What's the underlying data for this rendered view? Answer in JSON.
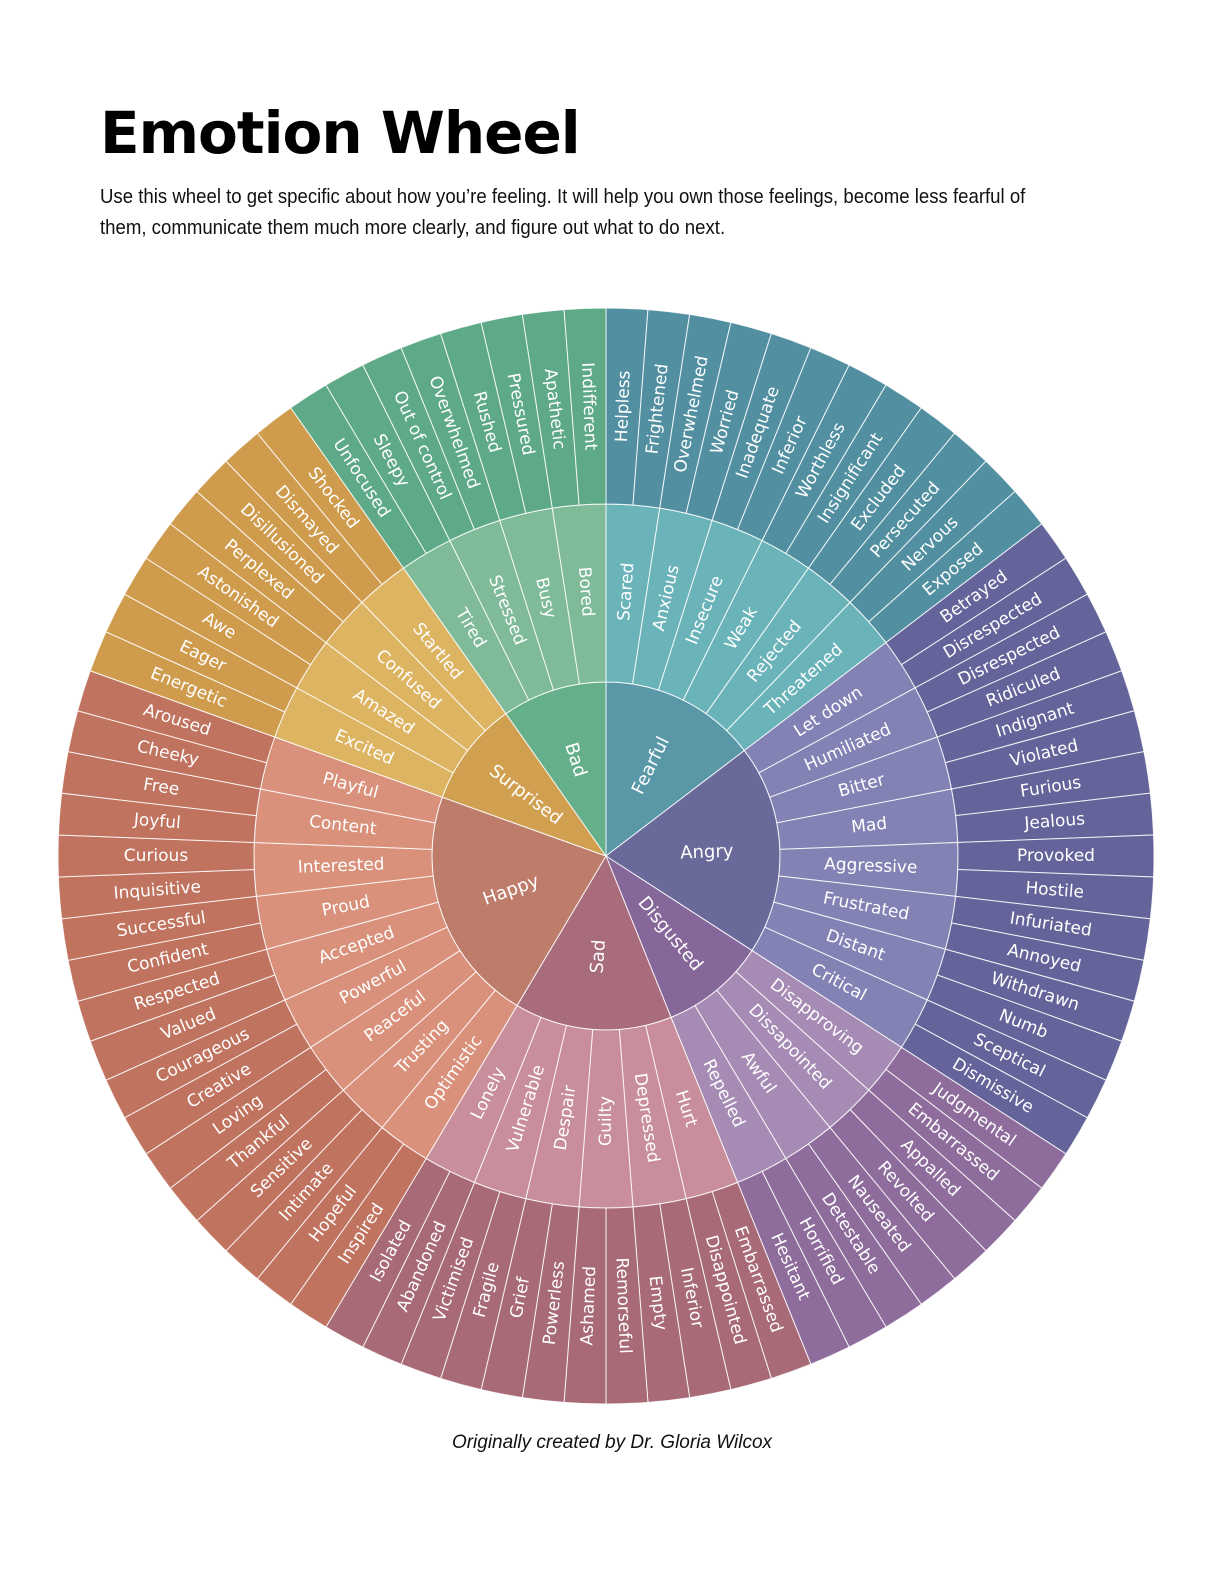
{
  "header": {
    "title": "Emotion Wheel",
    "subtitle": "Use this wheel to get specific about how you’re feeling. It will help you own those feelings, become less fearful of them, communicate them much more clearly, and figure out what to do next."
  },
  "footer": {
    "credit": "Originally created by Dr. Gloria Wilcox"
  },
  "wheel": {
    "emotions": [
      {
        "name": "Fearful",
        "color": "#5a98a8",
        "middle_color": "#6ab3b9",
        "outer_color": "#5290a1",
        "children": [
          {
            "name": "Scared",
            "children": [
              "Helpless",
              "Frightened"
            ]
          },
          {
            "name": "Anxious",
            "children": [
              "Overwhelmed",
              "Worried"
            ]
          },
          {
            "name": "Insecure",
            "children": [
              "Inadequate",
              "Inferior"
            ]
          },
          {
            "name": "Weak",
            "children": [
              "Worthless",
              "Insignificant"
            ]
          },
          {
            "name": "Rejected",
            "children": [
              "Excluded",
              "Persecuted"
            ]
          },
          {
            "name": "Threatened",
            "children": [
              "Nervous",
              "Exposed"
            ]
          }
        ]
      },
      {
        "name": "Angry",
        "color": "#6a6a9a",
        "middle_color": "#8382b4",
        "outer_color": "#64649a",
        "children": [
          {
            "name": "Let down",
            "children": [
              "Betrayed",
              "Disrespected"
            ]
          },
          {
            "name": "Humiliated",
            "children": [
              "Disrespected",
              "Ridiculed"
            ]
          },
          {
            "name": "Bitter",
            "children": [
              "Indignant",
              "Violated"
            ]
          },
          {
            "name": "Mad",
            "children": [
              "Furious",
              "Jealous"
            ]
          },
          {
            "name": "Aggressive",
            "children": [
              "Provoked",
              "Hostile"
            ]
          },
          {
            "name": "Frustrated",
            "children": [
              "Infuriated",
              "Annoyed"
            ]
          },
          {
            "name": "Distant",
            "children": [
              "Withdrawn",
              "Numb"
            ]
          },
          {
            "name": "Critical",
            "children": [
              "Sceptical",
              "Dismissive"
            ]
          }
        ]
      },
      {
        "name": "Disgusted",
        "color": "#85679a",
        "middle_color": "#a68bb4",
        "outer_color": "#8e6d9c",
        "children": [
          {
            "name": "Disapproving",
            "children": [
              "Judgmental",
              "Embarrassed"
            ]
          },
          {
            "name": "Dissapointed",
            "children": [
              "Appalled",
              "Revolted"
            ]
          },
          {
            "name": "Awful",
            "children": [
              "Nauseated",
              "Detestable"
            ]
          },
          {
            "name": "Repelled",
            "children": [
              "Horrified",
              "Hesitant"
            ]
          }
        ]
      },
      {
        "name": "Sad",
        "color": "#a86c7d",
        "middle_color": "#c98e9c",
        "outer_color": "#a76a76",
        "children": [
          {
            "name": "Hurt",
            "children": [
              "Embarrassed",
              "Disappointed"
            ]
          },
          {
            "name": "Depressed",
            "children": [
              "Inferior",
              "Empty"
            ]
          },
          {
            "name": "Guilty",
            "children": [
              "Remorseful",
              "Ashamed"
            ]
          },
          {
            "name": "Despair",
            "children": [
              "Powerless",
              "Grief"
            ]
          },
          {
            "name": "Vulnerable",
            "children": [
              "Fragile",
              "Victimised"
            ]
          },
          {
            "name": "Lonely",
            "children": [
              "Abandoned",
              "Isolated"
            ]
          }
        ]
      },
      {
        "name": "Happy",
        "color": "#be7d6b",
        "middle_color": "#d9917b",
        "outer_color": "#c0735f",
        "children": [
          {
            "name": "Optimistic",
            "children": [
              "Inspired",
              "Hopeful"
            ]
          },
          {
            "name": "Trusting",
            "children": [
              "Intimate",
              "Sensitive"
            ]
          },
          {
            "name": "Peaceful",
            "children": [
              "Thankful",
              "Loving"
            ]
          },
          {
            "name": "Powerful",
            "children": [
              "Creative",
              "Courageous"
            ]
          },
          {
            "name": "Accepted",
            "children": [
              "Valued",
              "Respected"
            ]
          },
          {
            "name": "Proud",
            "children": [
              "Confident",
              "Successful"
            ]
          },
          {
            "name": "Interested",
            "children": [
              "Inquisitive",
              "Curious"
            ]
          },
          {
            "name": "Content",
            "children": [
              "Joyful",
              "Free"
            ]
          },
          {
            "name": "Playful",
            "children": [
              "Cheeky",
              "Aroused"
            ]
          }
        ]
      },
      {
        "name": "Surprised",
        "color": "#d0a050",
        "middle_color": "#dcb462",
        "outer_color": "#cf9c4e",
        "children": [
          {
            "name": "Excited",
            "children": [
              "Energetic",
              "Eager"
            ]
          },
          {
            "name": "Amazed",
            "children": [
              "Awe",
              "Astonished"
            ]
          },
          {
            "name": "Confused",
            "children": [
              "Perplexed",
              "Disillusioned"
            ]
          },
          {
            "name": "Startled",
            "children": [
              "Dismayed",
              "Shocked"
            ]
          }
        ]
      },
      {
        "name": "Bad",
        "color": "#65b08a",
        "middle_color": "#7fbb98",
        "outer_color": "#5ea987",
        "children": [
          {
            "name": "Tired",
            "children": [
              "Unfocused",
              "Sleepy"
            ]
          },
          {
            "name": "Stressed",
            "children": [
              "Out of control",
              "Overwhelmed"
            ]
          },
          {
            "name": "Busy",
            "children": [
              "Rushed",
              "Pressured"
            ]
          },
          {
            "name": "Bored",
            "children": [
              "Apathetic",
              "Indifferent"
            ]
          }
        ]
      }
    ]
  }
}
